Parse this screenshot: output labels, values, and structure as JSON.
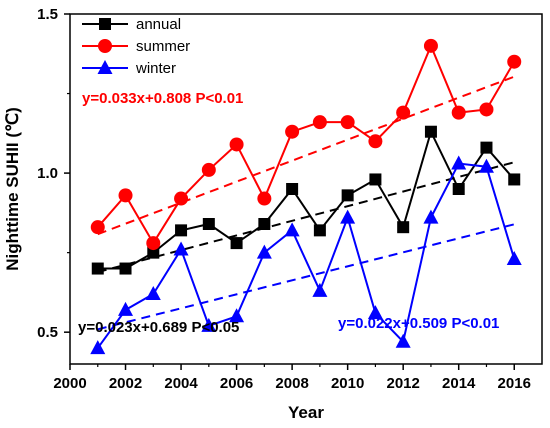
{
  "chart_data": {
    "type": "line",
    "title": "",
    "xlabel": "Year",
    "ylabel": "Nighttime SUHII (℃)",
    "xlim": [
      2000,
      2017
    ],
    "ylim": [
      0.4,
      1.5
    ],
    "xticks": [
      2000,
      2002,
      2004,
      2006,
      2008,
      2010,
      2012,
      2014,
      2016
    ],
    "yticks": [
      0.5,
      1.0,
      1.5
    ],
    "ytick_labels": [
      "0.5",
      "1.0",
      "1.5"
    ],
    "grid": false,
    "legend_position": "top-left",
    "x": [
      2001,
      2002,
      2003,
      2004,
      2005,
      2006,
      2007,
      2008,
      2009,
      2010,
      2011,
      2012,
      2013,
      2014,
      2015,
      2016
    ],
    "series": [
      {
        "name": "annual",
        "color": "#000000",
        "marker": "square",
        "values": [
          0.7,
          0.7,
          0.75,
          0.82,
          0.84,
          0.78,
          0.84,
          0.95,
          0.82,
          0.93,
          0.98,
          0.83,
          1.13,
          0.95,
          1.08,
          0.98
        ],
        "trend": {
          "slope": 0.023,
          "intercept_2001": 0.689,
          "label": "y=0.023x+0.689  P<0.05"
        }
      },
      {
        "name": "summer",
        "color": "#ff0000",
        "marker": "circle",
        "values": [
          0.83,
          0.93,
          0.78,
          0.92,
          1.01,
          1.09,
          0.92,
          1.13,
          1.16,
          1.16,
          1.1,
          1.19,
          1.4,
          1.19,
          1.2,
          1.35
        ],
        "trend": {
          "slope": 0.033,
          "intercept_2001": 0.808,
          "label": "y=0.033x+0.808  P<0.01"
        }
      },
      {
        "name": "winter",
        "color": "#0000ff",
        "marker": "triangle",
        "values": [
          0.45,
          0.57,
          0.62,
          0.76,
          0.52,
          0.55,
          0.75,
          0.82,
          0.63,
          0.86,
          0.56,
          0.47,
          0.86,
          1.03,
          1.02,
          0.73
        ],
        "trend": {
          "slope": 0.022,
          "intercept_2001": 0.509,
          "label": "y=0.022x+0.509  P<0.01"
        }
      }
    ]
  }
}
